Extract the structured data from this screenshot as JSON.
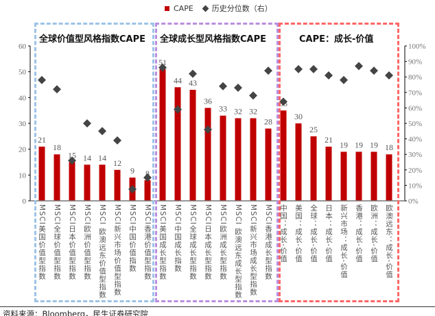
{
  "chart_data": {
    "type": "bar",
    "legend": [
      "CAPE",
      "历史分位数（右）"
    ],
    "legend_placement": "top",
    "categories": [
      "MSCI美国价值型指数",
      "MSCI全球价值型指数",
      "MSCI日本价值型指数",
      "MSCI欧洲价值型指数",
      "MSCI 欧澳远东价值型指数",
      "MSCI新兴市场价值型指数",
      "MSCI中国价值指数",
      "MSCI香港价值型指数",
      "MSCI美国成长型指数",
      "MSCI中国成长指数",
      "MSCI全球成长型指数",
      "MSCI日本成长型指数",
      "MSCI欧洲成长型指数",
      "MSCI 欧澳远东成长型指数",
      "MSCI新兴市场成长型指数",
      "MSCI香港成长型指数",
      "中国：成长-价值",
      "美国：成长-价值",
      "全球：成长-价值",
      "日本：成长-价值",
      "新兴市场：成长-价值",
      "香港：成长-价值",
      "欧洲：成长-价值",
      "欧澳远东：成长-价值"
    ],
    "series": [
      {
        "name": "CAPE",
        "axis": "left",
        "type": "bar",
        "color": "#c00000",
        "values": [
          21,
          18,
          15,
          14,
          14,
          12,
          9,
          8,
          51,
          44,
          43,
          36,
          33,
          32,
          32,
          28,
          35,
          30,
          25,
          21,
          19,
          19,
          19,
          18
        ]
      },
      {
        "name": "历史分位数（右）",
        "axis": "right",
        "type": "scatter",
        "color": "#444444",
        "values": [
          0.78,
          0.72,
          0.26,
          0.5,
          0.45,
          0.39,
          0.075,
          0.15,
          0.86,
          0.59,
          0.82,
          0.46,
          0.74,
          0.73,
          0.68,
          0.84,
          0.64,
          0.85,
          0.85,
          0.81,
          0.78,
          0.87,
          0.84,
          0.81
        ]
      }
    ],
    "ylim_left": [
      0,
      60
    ],
    "yticks_left": [
      "0",
      "10",
      "20",
      "30",
      "40",
      "50",
      "60"
    ],
    "ylim_right": [
      0,
      1
    ],
    "yticks_right": [
      "0%",
      "10%",
      "20%",
      "30%",
      "40%",
      "50%",
      "60%",
      "70%",
      "80%",
      "90%",
      "100%"
    ],
    "groups": [
      {
        "title": "全球价值型风格指数CAPE",
        "color": "#9dc3e6"
      },
      {
        "title": "全球成长型风格指数CAPE",
        "color": "#b98ee0"
      },
      {
        "title": "CAPE：成长-价值",
        "color": "#ff6666"
      }
    ]
  },
  "source": "资料来源：Bloomberg，民生证券研究院"
}
